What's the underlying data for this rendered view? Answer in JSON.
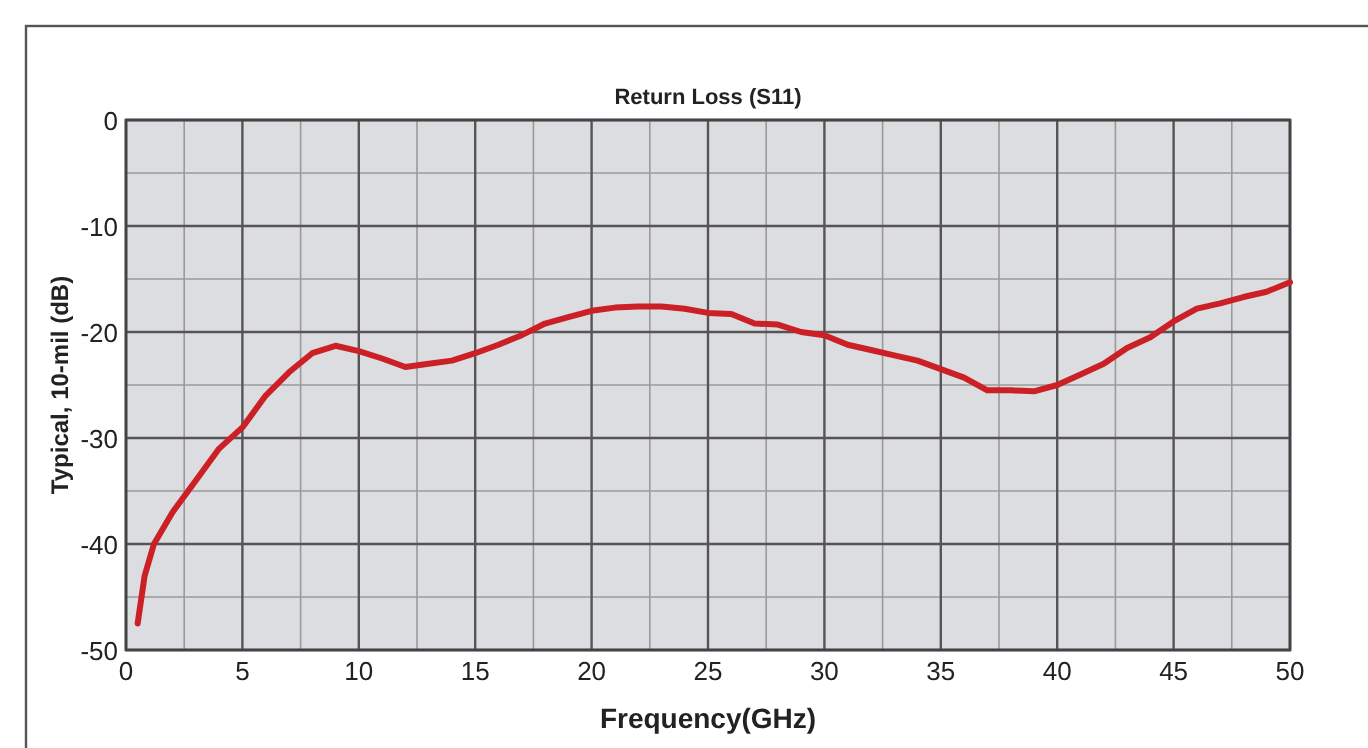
{
  "chart_data": {
    "type": "line",
    "title": "Return Loss (S11)",
    "xlabel": "Frequency(GHz)",
    "ylabel": "Typical, 10-mil (dB)",
    "series": [
      {
        "color": "#cc2027",
        "x": [
          0.5,
          0.8,
          1.2,
          2,
          3,
          4,
          5,
          6,
          7,
          8,
          9,
          10,
          11,
          12,
          13,
          14,
          15,
          16,
          17,
          18,
          19,
          20,
          21,
          22,
          23,
          24,
          25,
          26,
          27,
          28,
          29,
          30,
          31,
          32,
          33,
          34,
          35,
          36,
          37,
          38,
          39,
          40,
          41,
          42,
          43,
          44,
          45,
          46,
          47,
          48,
          49,
          50
        ],
        "values": [
          -47.5,
          -43,
          -40,
          -37,
          -34,
          -31,
          -29,
          -26,
          -23.8,
          -22,
          -21.3,
          -21.8,
          -22.5,
          -23.3,
          -23,
          -22.7,
          -22,
          -21.2,
          -20.3,
          -19.2,
          -18.6,
          -18,
          -17.7,
          -17.6,
          -17.6,
          -17.8,
          -18.2,
          -18.3,
          -19.2,
          -19.3,
          -20,
          -20.3,
          -21.2,
          -21.7,
          -22.2,
          -22.7,
          -23.5,
          -24.3,
          -25.5,
          -25.5,
          -25.6,
          -25,
          -24,
          -23,
          -21.5,
          -20.5,
          -19,
          -17.8,
          -17.3,
          -16.7,
          -16.2,
          -15.3
        ]
      }
    ],
    "xlim": [
      0,
      50
    ],
    "xticks": [
      0,
      5,
      10,
      15,
      20,
      25,
      30,
      35,
      40,
      45,
      50
    ],
    "ylim": [
      -50,
      0
    ],
    "yticks": [
      -50,
      -40,
      -30,
      -20,
      -10,
      0
    ],
    "grid": true,
    "line_style": "solid",
    "marker": "none"
  }
}
